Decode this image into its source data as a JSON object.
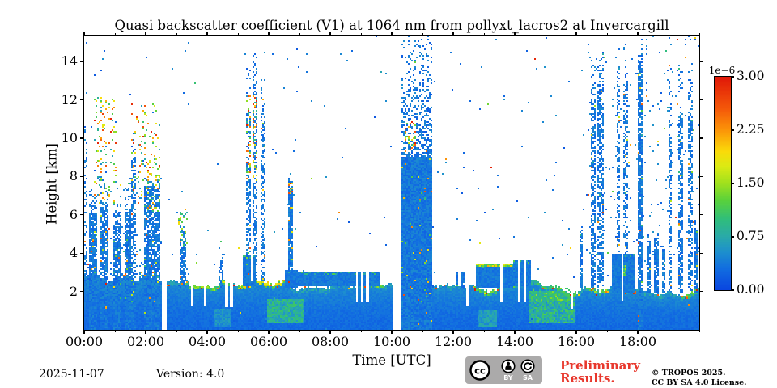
{
  "figure": {
    "footer": {
      "date": "2025-11-07",
      "version": "Version: 4.0",
      "preliminary_line1": "Preliminary",
      "preliminary_line2": "Results.",
      "preliminary_color": "#e8372c",
      "copyright_line1": "© TROPOS 2025.",
      "copyright_line2": "CC BY SA 4.0 License.",
      "license_badge": {
        "cc": "cc",
        "by": "BY",
        "sa": "SA"
      }
    }
  },
  "chart_data": {
    "type": "heatmap",
    "title": "Quasi backscatter coefficient (V1) at 1064 nm from pollyxt_lacros2 at Invercargill",
    "xlabel": "Time [UTC]",
    "ylabel": "Height [km]",
    "background": "#ffffff",
    "x_range_hours": [
      0,
      20
    ],
    "y_range_km": [
      0,
      15.36
    ],
    "x_major_ticks": [
      {
        "hour": 0,
        "label": "00:00"
      },
      {
        "hour": 2,
        "label": "02:00"
      },
      {
        "hour": 4,
        "label": "04:00"
      },
      {
        "hour": 6,
        "label": "06:00"
      },
      {
        "hour": 8,
        "label": "08:00"
      },
      {
        "hour": 10,
        "label": "10:00"
      },
      {
        "hour": 12,
        "label": "12:00"
      },
      {
        "hour": 14,
        "label": "14:00"
      },
      {
        "hour": 16,
        "label": "16:00"
      },
      {
        "hour": 18,
        "label": "18:00"
      }
    ],
    "x_minor_tick_every_hours": 1,
    "y_major_ticks_km": [
      2,
      4,
      6,
      8,
      10,
      12,
      14
    ],
    "grid": false,
    "colorbar": {
      "scale_label": "1e−6",
      "ticks": [
        {
          "value": 3.0,
          "label": "3.00"
        },
        {
          "value": 2.25,
          "label": "2.25"
        },
        {
          "value": 1.5,
          "label": "1.50"
        },
        {
          "value": 0.75,
          "label": "0.75"
        },
        {
          "value": 0.0,
          "label": "0.00"
        }
      ],
      "value_range": [
        0,
        3
      ],
      "colormap_stops": [
        [
          0.0,
          10,
          70,
          224
        ],
        [
          0.1,
          18,
          110,
          225
        ],
        [
          0.18,
          30,
          145,
          205
        ],
        [
          0.25,
          42,
          170,
          170
        ],
        [
          0.33,
          48,
          190,
          125
        ],
        [
          0.42,
          90,
          210,
          60
        ],
        [
          0.5,
          160,
          225,
          30
        ],
        [
          0.58,
          220,
          235,
          20
        ],
        [
          0.65,
          250,
          220,
          10
        ],
        [
          0.75,
          252,
          150,
          8
        ],
        [
          0.85,
          245,
          90,
          10
        ],
        [
          1.0,
          225,
          25,
          8
        ]
      ]
    },
    "features": {
      "description": "Low aerosol/cloud layer 0-2.5 km all day with green-yellow-red cloud-top edges; rain/cloud columns and virga; dense precipitation column 10:20-11:15 reaching 15 km; white = no signal/gap.",
      "band_top_km": [
        [
          0,
          2.55
        ],
        [
          0.4,
          2.8
        ],
        [
          0.8,
          2.6
        ],
        [
          1.2,
          2.85
        ],
        [
          1.6,
          2.7
        ],
        [
          2.0,
          2.75
        ],
        [
          2.3,
          2.6
        ],
        [
          2.5,
          2.5
        ],
        [
          2.8,
          2.35
        ],
        [
          3.1,
          2.3
        ],
        [
          3.35,
          2.6
        ],
        [
          3.6,
          2.25
        ],
        [
          3.9,
          2.3
        ],
        [
          4.2,
          2.45
        ],
        [
          4.5,
          2.75
        ],
        [
          4.8,
          2.35
        ],
        [
          5.1,
          2.45
        ],
        [
          5.5,
          2.4
        ],
        [
          5.9,
          2.45
        ],
        [
          6.2,
          2.35
        ],
        [
          6.5,
          2.45
        ],
        [
          6.9,
          2.3
        ],
        [
          7.3,
          2.25
        ],
        [
          7.8,
          2.3
        ],
        [
          8.3,
          2.3
        ],
        [
          8.8,
          2.25
        ],
        [
          9.2,
          2.3
        ],
        [
          9.6,
          2.45
        ],
        [
          10.0,
          2.45
        ],
        [
          10.4,
          2.35
        ],
        [
          10.8,
          2.3
        ],
        [
          11.2,
          2.35
        ],
        [
          11.6,
          2.25
        ],
        [
          12.0,
          2.1
        ],
        [
          12.3,
          2.4
        ],
        [
          12.6,
          2.25
        ],
        [
          13.0,
          2.2
        ],
        [
          13.5,
          2.3
        ],
        [
          14.0,
          2.45
        ],
        [
          14.4,
          2.5
        ],
        [
          14.8,
          2.35
        ],
        [
          15.2,
          2.2
        ],
        [
          15.6,
          1.95
        ],
        [
          16.0,
          2.1
        ],
        [
          16.4,
          2.3
        ],
        [
          16.8,
          2.2
        ],
        [
          17.2,
          2.1
        ],
        [
          17.6,
          2.05
        ],
        [
          18.0,
          1.95
        ],
        [
          18.4,
          1.9
        ],
        [
          18.8,
          1.95
        ],
        [
          19.2,
          2.0
        ],
        [
          19.6,
          2.0
        ],
        [
          20,
          2.05
        ]
      ],
      "gaps_hours": [
        [
          2.52,
          2.66
        ],
        [
          10.06,
          10.33
        ]
      ],
      "blocks": [
        [
          5.15,
          5.6,
          2.3,
          3.9,
          0
        ],
        [
          6.55,
          6.95,
          2.2,
          3.15,
          0
        ],
        [
          6.95,
          9.65,
          2.3,
          3.05,
          0
        ],
        [
          12.75,
          13.95,
          2.2,
          3.45,
          1
        ],
        [
          13.95,
          14.55,
          2.3,
          3.6,
          0
        ],
        [
          17.15,
          17.9,
          1.9,
          4.0,
          0
        ]
      ],
      "slots": [
        [
          3.48,
          3.55,
          1.3
        ],
        [
          3.9,
          3.97,
          1.3
        ],
        [
          4.6,
          4.68,
          1.2
        ],
        [
          4.75,
          4.82,
          1.2
        ],
        [
          5.42,
          5.48,
          2.5
        ],
        [
          5.63,
          5.72,
          2.5
        ],
        [
          8.83,
          8.9,
          1.4
        ],
        [
          9.0,
          9.07,
          1.4
        ],
        [
          9.18,
          9.26,
          1.4
        ],
        [
          12.42,
          12.5,
          1.3
        ],
        [
          13.55,
          13.62,
          1.4
        ],
        [
          14.1,
          14.18,
          1.4
        ],
        [
          14.3,
          14.38,
          1.4
        ],
        [
          15.82,
          15.9,
          1.1
        ],
        [
          17.45,
          17.52,
          1.5
        ]
      ],
      "columns": [
        [
          0.0,
          0.12,
          2.3,
          9,
          0.3,
          13.5
        ],
        [
          0.15,
          0.4,
          0,
          6.0,
          0.85,
          8
        ],
        [
          0.55,
          0.8,
          0,
          6.5,
          0.8,
          9.5
        ],
        [
          0.95,
          1.2,
          0,
          5.6,
          0.8,
          7
        ],
        [
          1.3,
          1.55,
          0,
          6.2,
          0.8,
          8
        ],
        [
          1.55,
          1.68,
          0,
          9.0,
          0.6,
          11.5
        ],
        [
          1.95,
          2.45,
          0,
          7.5,
          0.75,
          8.5
        ],
        [
          3.1,
          3.3,
          2.2,
          4.6,
          0.7,
          6.5
        ],
        [
          4.35,
          4.55,
          2.2,
          3.6,
          0.6,
          4.5
        ],
        [
          5.25,
          5.4,
          2.5,
          11.5,
          0.5,
          14.5
        ],
        [
          5.5,
          5.62,
          2.5,
          13.0,
          0.5,
          14.8
        ],
        [
          5.75,
          5.88,
          2.5,
          11.5,
          0.5,
          13
        ],
        [
          6.62,
          6.8,
          3.0,
          7.5,
          0.85,
          8
        ],
        [
          10.33,
          11.3,
          0,
          9.0,
          1.0,
          15.36
        ],
        [
          12.08,
          12.15,
          2.1,
          3.1,
          0.9,
          3.2
        ],
        [
          12.28,
          12.35,
          2.1,
          3.0,
          0.9,
          3.1
        ],
        [
          16.12,
          16.2,
          2.2,
          5.0,
          0.85,
          5.5
        ],
        [
          16.48,
          16.65,
          2.2,
          12.0,
          0.6,
          15.36
        ],
        [
          16.7,
          16.88,
          2.2,
          12.5,
          0.6,
          15.36
        ],
        [
          17.3,
          17.42,
          4.0,
          13,
          0.45,
          15.36
        ],
        [
          17.55,
          17.66,
          4.0,
          13,
          0.45,
          15.36
        ],
        [
          18.0,
          18.14,
          0,
          14,
          0.8,
          15.36
        ],
        [
          18.3,
          18.42,
          1.9,
          4.4,
          0.85,
          5
        ],
        [
          18.55,
          18.66,
          1.9,
          4.6,
          0.85,
          5.2
        ],
        [
          18.78,
          18.88,
          1.9,
          4.2,
          0.85,
          4.6
        ],
        [
          19.0,
          19.12,
          1.9,
          10,
          0.55,
          15.36
        ],
        [
          19.3,
          19.46,
          1.9,
          11,
          0.6,
          15.36
        ],
        [
          19.62,
          19.78,
          1.9,
          11,
          0.6,
          15.36
        ],
        [
          19.86,
          19.97,
          1.9,
          5.2,
          0.8,
          6
        ]
      ],
      "clusters": [
        [
          0.3,
          1.05,
          6.6,
          12.2,
          0.1,
          0.6,
          3
        ],
        [
          1.55,
          2.5,
          6.8,
          11.8,
          0.1,
          0.6,
          3
        ],
        [
          2.05,
          2.45,
          6.2,
          8.2,
          0.2,
          0.5,
          2.5
        ],
        [
          3.05,
          3.35,
          4.2,
          6.4,
          0.15,
          0.5,
          2.2
        ],
        [
          5.25,
          5.65,
          7.8,
          12.2,
          0.22,
          0.6,
          3
        ],
        [
          6.64,
          6.8,
          7.1,
          7.7,
          0.5,
          1.2,
          3
        ],
        [
          10.4,
          10.8,
          9.3,
          10.9,
          0.28,
          0.8,
          3
        ],
        [
          17.52,
          17.64,
          2.8,
          3.4,
          0.7,
          0.8,
          1.6
        ],
        [
          14.6,
          15.9,
          1.5,
          2.2,
          0.3,
          0.7,
          1.5
        ]
      ],
      "haze": [
        [
          5.95,
          7.15,
          0.3,
          1.6,
          0.55,
          1.1
        ],
        [
          14.5,
          15.95,
          0.3,
          2.0,
          0.5,
          1.2
        ],
        [
          12.8,
          13.4,
          0.2,
          1.0,
          0.45,
          0.8
        ],
        [
          4.2,
          4.8,
          0.2,
          1.1,
          0.4,
          0.7
        ]
      ],
      "noise_regions": [
        [
          0,
          20,
          0,
          15.36,
          0.004,
          0
        ],
        [
          0.05,
          2.6,
          2.4,
          6.8,
          0.16,
          1
        ],
        [
          0.05,
          2.6,
          6.8,
          9.5,
          0.035,
          1
        ],
        [
          2.7,
          3.7,
          2.3,
          5.2,
          0.05,
          1
        ],
        [
          4.2,
          5.2,
          2.4,
          4.0,
          0.04,
          1
        ],
        [
          11.35,
          12.8,
          2.2,
          3.4,
          0.035,
          1
        ],
        [
          13.9,
          16.3,
          2.4,
          4.6,
          0.02,
          1
        ],
        [
          16.3,
          20,
          3.5,
          15.36,
          0.022,
          0
        ],
        [
          5.2,
          6.0,
          12,
          14.8,
          0.015,
          0
        ],
        [
          0,
          0.25,
          2.4,
          13.5,
          0.05,
          1
        ]
      ],
      "edge_boost": [
        [
          0,
          2.7,
          0.55
        ],
        [
          3.2,
          4.8,
          1.7
        ],
        [
          5.0,
          6.75,
          2.3
        ],
        [
          9.3,
          9.75,
          1.6
        ],
        [
          10.33,
          11.35,
          0.4
        ],
        [
          12.7,
          14.0,
          1.5
        ],
        [
          14.3,
          16.1,
          1.4
        ],
        [
          16.3,
          17.05,
          1.7
        ],
        [
          19.4,
          20,
          1.5
        ]
      ]
    }
  }
}
